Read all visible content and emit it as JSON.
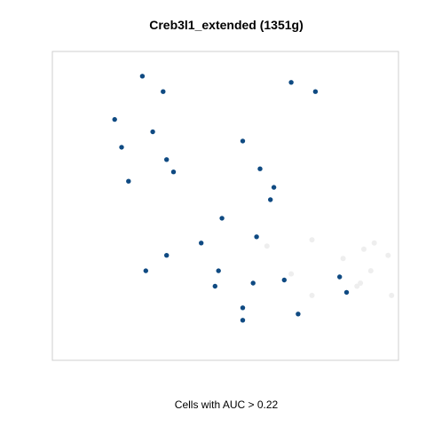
{
  "chart_data": {
    "type": "scatter",
    "title": "Creb3l1_extended (1351g)",
    "xlabel": "Cells with AUC > 0.22",
    "ylabel": "",
    "grid": false,
    "colors": {
      "active": "#0f4a82",
      "inactive": "#ececec"
    },
    "series": [
      {
        "values": [
          [
            2.6,
            9.2
          ],
          [
            3.2,
            8.7
          ],
          [
            6.9,
            9.0
          ],
          [
            7.6,
            8.7
          ],
          [
            1.8,
            7.8
          ],
          [
            2.9,
            7.4
          ],
          [
            2.0,
            6.9
          ],
          [
            3.3,
            6.5
          ],
          [
            3.5,
            6.1
          ],
          [
            2.2,
            5.8
          ],
          [
            6.4,
            5.6
          ],
          [
            6.3,
            5.2
          ],
          [
            4.9,
            4.6
          ],
          [
            5.9,
            4.0
          ],
          [
            4.3,
            3.8
          ],
          [
            3.3,
            3.4
          ],
          [
            2.7,
            2.9
          ],
          [
            4.8,
            2.9
          ],
          [
            4.7,
            2.4
          ],
          [
            5.8,
            2.5
          ],
          [
            6.7,
            2.6
          ],
          [
            8.3,
            2.7
          ],
          [
            8.5,
            2.2
          ],
          [
            5.5,
            1.7
          ],
          [
            5.5,
            1.3
          ],
          [
            7.1,
            1.5
          ],
          [
            6.0,
            6.2
          ],
          [
            5.5,
            7.1
          ]
        ]
      },
      {
        "values": [
          [
            6.2,
            3.7
          ],
          [
            7.5,
            3.9
          ],
          [
            9.0,
            3.6
          ],
          [
            8.4,
            3.3
          ],
          [
            9.7,
            3.4
          ],
          [
            9.2,
            2.9
          ],
          [
            9.8,
            2.1
          ],
          [
            8.8,
            2.4
          ],
          [
            7.5,
            2.1
          ],
          [
            6.9,
            2.8
          ],
          [
            9.3,
            3.8
          ],
          [
            8.9,
            2.5
          ]
        ]
      }
    ]
  }
}
